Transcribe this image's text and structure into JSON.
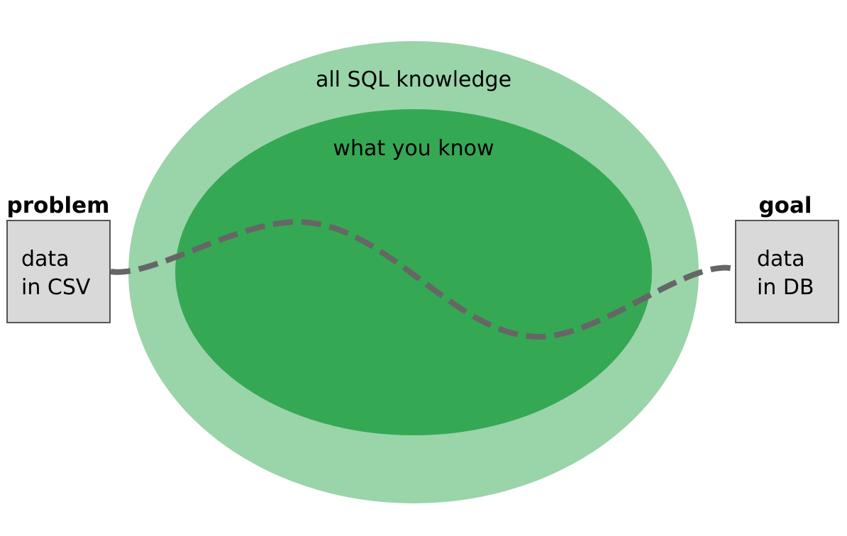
{
  "diagram": {
    "outer_region": {
      "label": "all SQL knowledge",
      "color": "#9ad4a9"
    },
    "inner_region": {
      "label": "what you know",
      "color": "#35a853"
    },
    "start": {
      "heading": "problem",
      "line1": "data",
      "line2": "in CSV"
    },
    "end": {
      "heading": "goal",
      "line1": "data",
      "line2": "in DB"
    },
    "box_fill": "#d9d9d9",
    "box_stroke": "#555555",
    "path_color": "#666666",
    "path_style": "dashed"
  }
}
